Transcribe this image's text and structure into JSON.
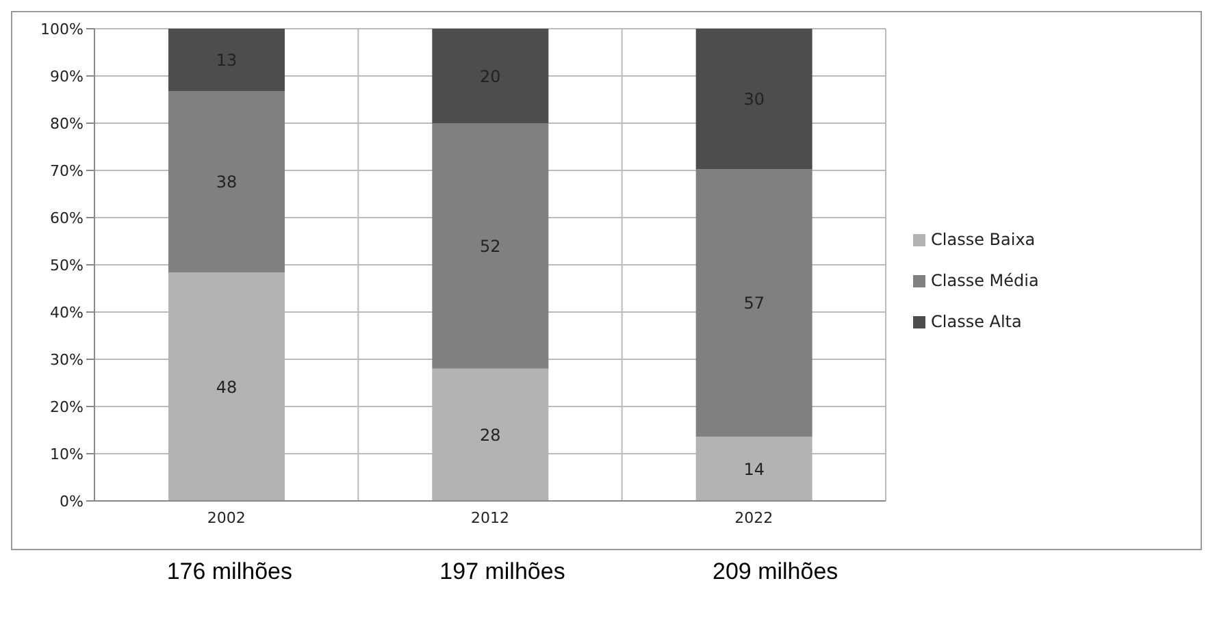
{
  "chart_data": {
    "type": "bar",
    "stacked": true,
    "categories": [
      "2002",
      "2012",
      "2022"
    ],
    "series": [
      {
        "name": "Classe Baixa",
        "color": "#b3b3b3",
        "values": [
          48.4,
          28,
          13.6
        ],
        "value_labels": [
          "48",
          "28",
          "14"
        ]
      },
      {
        "name": "Classe Média",
        "color": "#808080",
        "values": [
          38.4,
          52,
          56.6
        ],
        "value_labels": [
          "38",
          "52",
          "57"
        ]
      },
      {
        "name": "Classe Alta",
        "color": "#4d4d4d",
        "values": [
          13.2,
          20,
          29.8
        ],
        "value_labels": [
          "13",
          "20",
          "30"
        ]
      }
    ],
    "ylim": [
      0,
      100
    ],
    "yticks": [
      {
        "value": 0,
        "label": "0%"
      },
      {
        "value": 10,
        "label": "10%"
      },
      {
        "value": 20,
        "label": "20%"
      },
      {
        "value": 30,
        "label": "30%"
      },
      {
        "value": 40,
        "label": "40%"
      },
      {
        "value": 50,
        "label": "50%"
      },
      {
        "value": 60,
        "label": "60%"
      },
      {
        "value": 70,
        "label": "70%"
      },
      {
        "value": 80,
        "label": "80%"
      },
      {
        "value": 90,
        "label": "90%"
      },
      {
        "value": 100,
        "label": "100%"
      }
    ],
    "grid": true,
    "legend": "right",
    "annotations": [
      "176 milhões",
      "197 milhões",
      "209 milhões"
    ]
  }
}
